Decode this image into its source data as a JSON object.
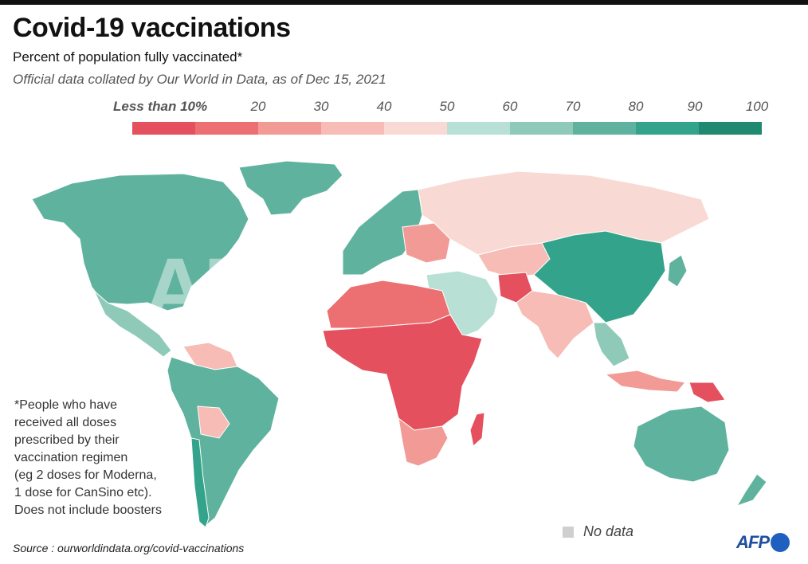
{
  "header": {
    "title": "Covid-19 vaccinations",
    "subtitle": "Percent of population fully vaccinated*",
    "source_note": "Official data collated by Our World in Data, as of Dec 15, 2021"
  },
  "legend": {
    "labels": [
      "Less than 10%",
      "20",
      "30",
      "40",
      "50",
      "60",
      "70",
      "80",
      "90",
      "100"
    ],
    "colors": [
      "#e5505f",
      "#ec6f72",
      "#f29b96",
      "#f6bcb5",
      "#f9d9d3",
      "#b9e0d4",
      "#8fcab9",
      "#5fb39e",
      "#33a48b",
      "#1f8a70"
    ]
  },
  "footnote": {
    "lines": [
      "*People who have",
      "received all doses",
      "prescribed by their",
      "vaccination regimen",
      "(eg 2 doses for Moderna,",
      "1 dose for CanSino etc).",
      "Does not include boosters"
    ]
  },
  "no_data": {
    "label": "No data",
    "color": "#cfcfcf"
  },
  "footer": {
    "source": "Source : ourworldindata.org/covid-vaccinations",
    "logo_text": "AFP"
  },
  "watermark": "AFP",
  "regions": [
    {
      "name": "North America",
      "bin": 7
    },
    {
      "name": "Greenland",
      "bin": 7
    },
    {
      "name": "Central America",
      "bin": 6
    },
    {
      "name": "South America",
      "bin": 7
    },
    {
      "name": "Bolivia",
      "bin": 3
    },
    {
      "name": "Venezuela",
      "bin": 3
    },
    {
      "name": "Chile",
      "bin": 8
    },
    {
      "name": "Europe",
      "bin": 7
    },
    {
      "name": "Eastern Europe",
      "bin": 2
    },
    {
      "name": "Russia",
      "bin": 4
    },
    {
      "name": "Middle East",
      "bin": 5
    },
    {
      "name": "Central Asia",
      "bin": 3
    },
    {
      "name": "Afghanistan",
      "bin": 0
    },
    {
      "name": "South Asia",
      "bin": 3
    },
    {
      "name": "China",
      "bin": 8
    },
    {
      "name": "Japan",
      "bin": 7
    },
    {
      "name": "Southeast Asia",
      "bin": 6
    },
    {
      "name": "Indonesia",
      "bin": 2
    },
    {
      "name": "Papua New Guinea",
      "bin": 0
    },
    {
      "name": "Australia",
      "bin": 7
    },
    {
      "name": "New Zealand",
      "bin": 7
    },
    {
      "name": "North Africa",
      "bin": 1
    },
    {
      "name": "Sub-Saharan Africa",
      "bin": 0
    },
    {
      "name": "Southern Africa",
      "bin": 2
    },
    {
      "name": "Madagascar",
      "bin": 0
    }
  ]
}
